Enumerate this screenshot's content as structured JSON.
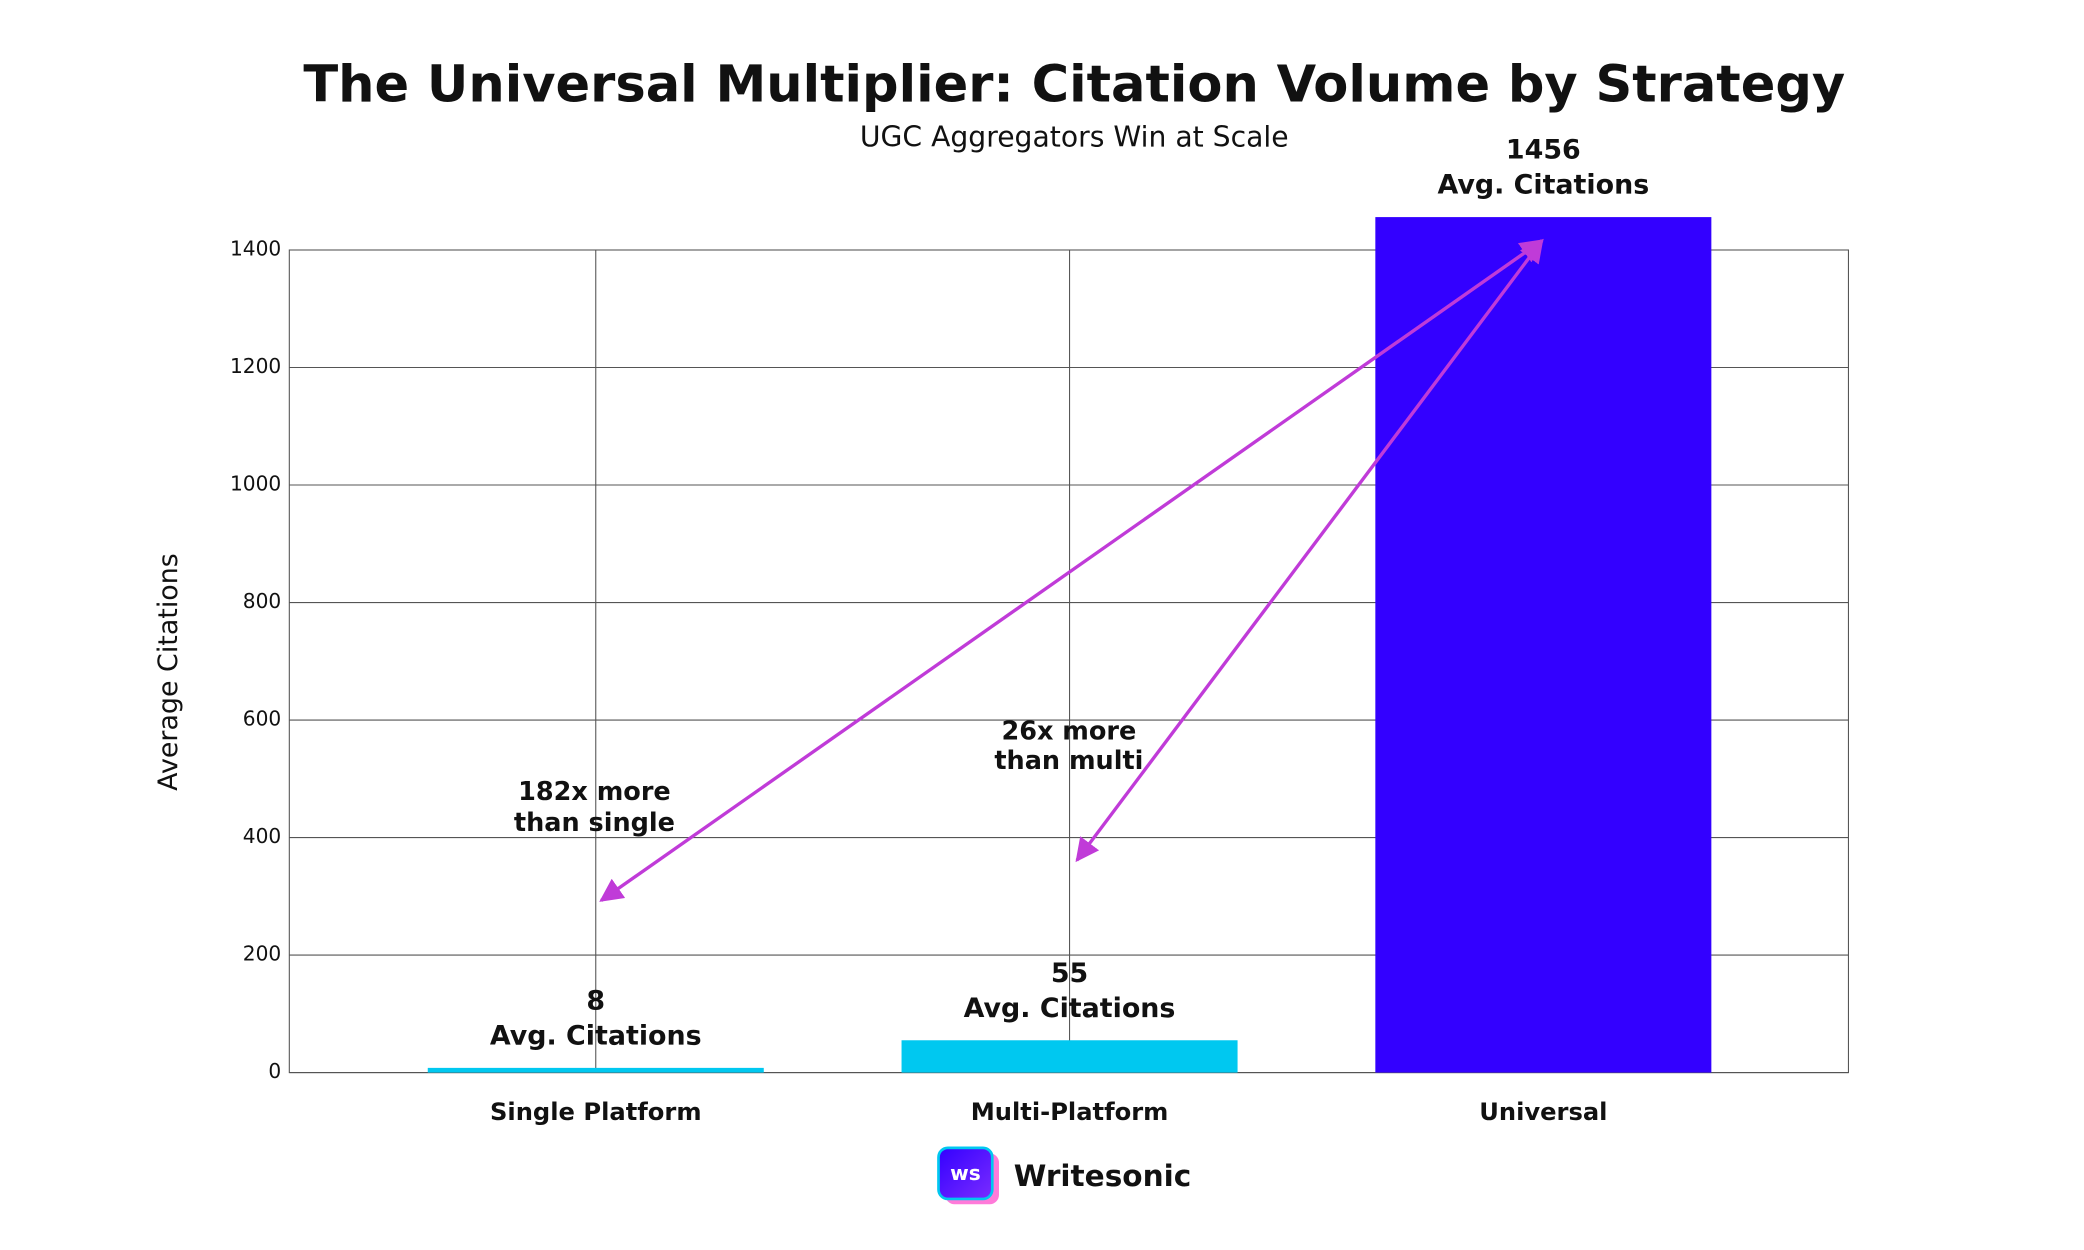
{
  "chart_data": {
    "type": "bar",
    "title": "The Universal Multiplier: Citation Volume by Strategy",
    "subtitle": "UGC Aggregators Win at Scale",
    "y_label": "Average Citations",
    "categories": [
      "Single Platform",
      "Multi-Platform",
      "Universal"
    ],
    "values": [
      8,
      55,
      1456
    ],
    "value_labels": [
      "8",
      "55",
      "1456"
    ],
    "value_label_caption": "Avg. Citations",
    "colors": [
      "#00c8f0",
      "#00c8f0",
      "#3300ff"
    ],
    "ylim": [
      0,
      1400
    ],
    "yticks": [
      0,
      200,
      400,
      600,
      800,
      1000,
      1200,
      1400
    ],
    "grid": true,
    "annotations": [
      {
        "lines": [
          "182x more",
          "than single"
        ]
      },
      {
        "lines": [
          "26x more",
          "than multi"
        ]
      }
    ]
  },
  "branding": {
    "logo_text": "ws",
    "name": "Writesonic"
  }
}
